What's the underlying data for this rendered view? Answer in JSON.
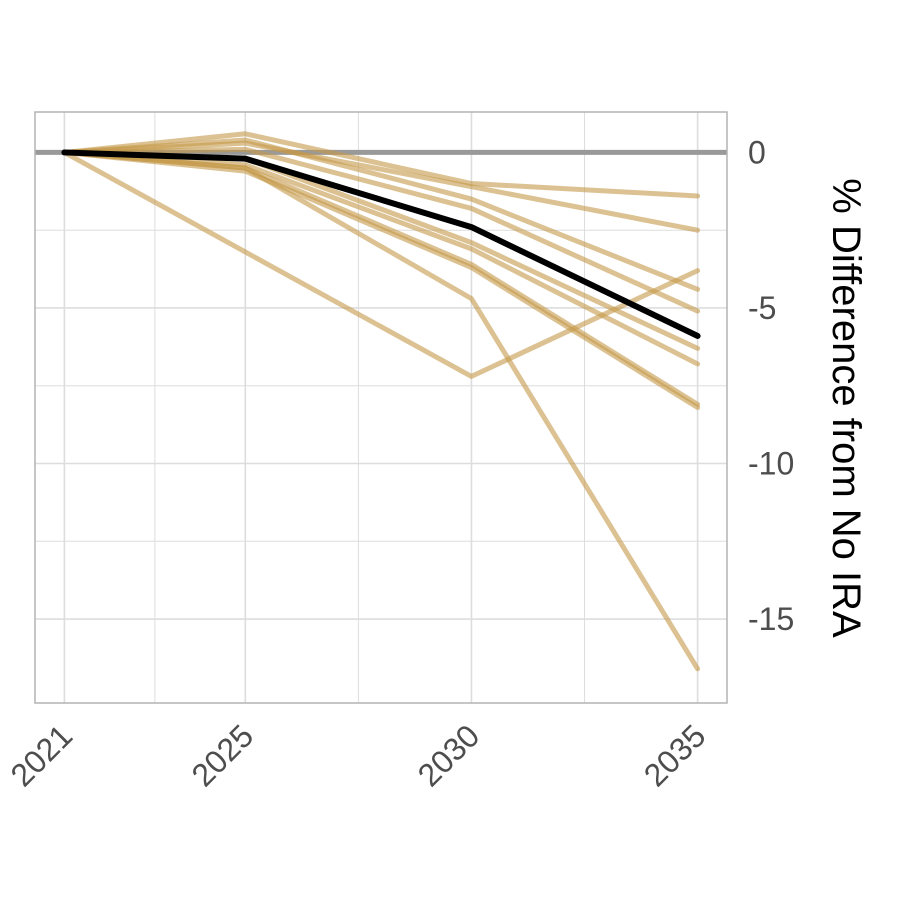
{
  "chart_data": {
    "type": "line",
    "title": "",
    "xlabel": "",
    "ylabel": "% Difference from No IRA",
    "y_axis_position": "right",
    "x": [
      2021,
      2025,
      2030,
      2035
    ],
    "x_tick_labels": [
      "2021",
      "2025",
      "2030",
      "2035"
    ],
    "xlim": [
      2020.35,
      2035.65
    ],
    "ylim": [
      -17.7,
      1.3
    ],
    "y_ticks": [
      0,
      -5,
      -10,
      -15
    ],
    "y_tick_labels": [
      "0",
      "-5",
      "-10",
      "-15"
    ],
    "grid": true,
    "legend": "none",
    "reference_line": {
      "y": 0,
      "color": "#999999"
    },
    "colors": {
      "model_series": "#C49A4A",
      "average_series": "#000000",
      "grid": "#dddddd",
      "panel_border": "#b3b3b3",
      "tick_label": "#4d4d4d"
    },
    "series": [
      {
        "values": [
          0,
          0.6,
          -1.0,
          -1.4
        ]
      },
      {
        "values": [
          0,
          0.3,
          -1.1,
          -2.5
        ]
      },
      {
        "values": [
          0,
          0.4,
          -1.5,
          -4.4
        ]
      },
      {
        "values": [
          0,
          0.1,
          -1.8,
          -5.1
        ]
      },
      {
        "values": [
          0,
          -0.2,
          -2.9,
          -6.3
        ]
      },
      {
        "values": [
          0,
          -0.4,
          -3.1,
          -6.8
        ]
      },
      {
        "values": [
          0,
          -0.5,
          -3.6,
          -8.1
        ]
      },
      {
        "values": [
          0,
          -0.6,
          -3.7,
          -8.2
        ]
      },
      {
        "values": [
          0,
          -0.5,
          -4.7,
          -16.6
        ]
      },
      {
        "values": [
          0,
          -3.2,
          -7.2,
          -3.8
        ]
      },
      {
        "highlight": true,
        "values": [
          0,
          -0.2,
          -2.4,
          -5.9
        ]
      }
    ]
  }
}
